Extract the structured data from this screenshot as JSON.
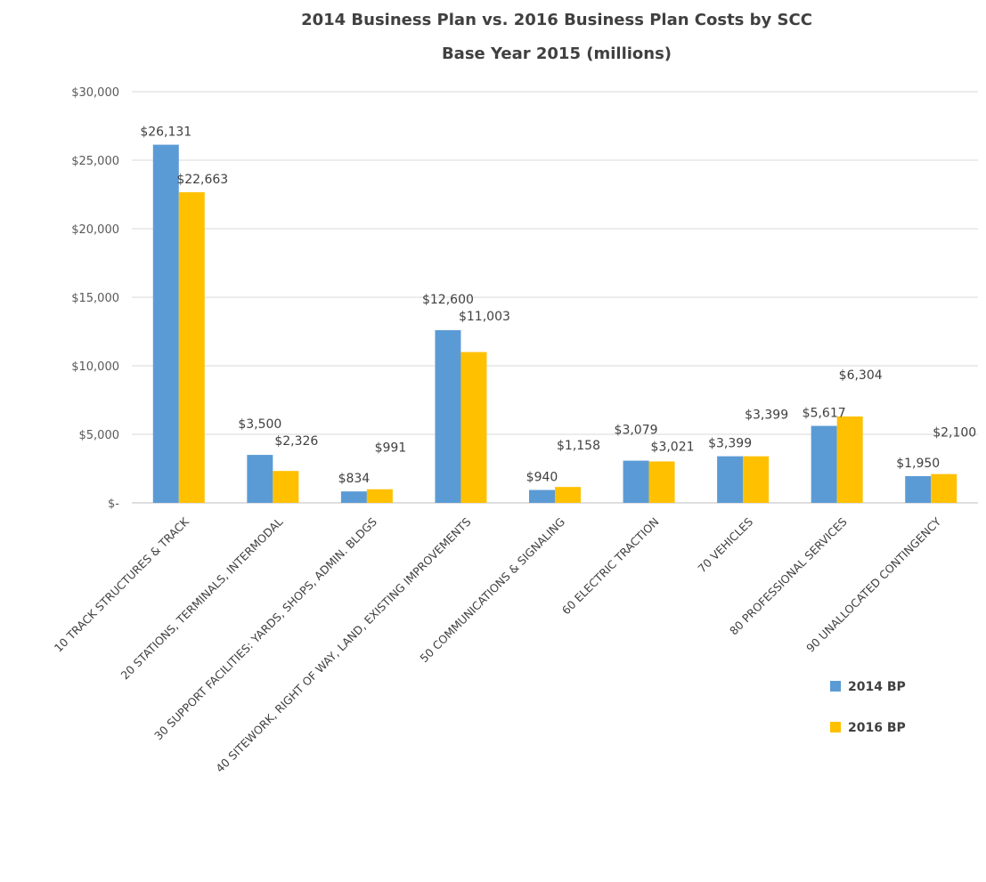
{
  "chart_data": {
    "type": "bar",
    "title": "2014 Business Plan vs. 2016 Business Plan Costs by SCC",
    "subtitle": "Base Year 2015 (millions)",
    "xlabel": "",
    "ylabel": "",
    "ylim": [
      0,
      30000
    ],
    "grid": true,
    "legend_position": "bottom-right",
    "y_ticks": [
      {
        "value": 0,
        "label": "$-"
      },
      {
        "value": 5000,
        "label": "$5,000"
      },
      {
        "value": 10000,
        "label": "$10,000"
      },
      {
        "value": 15000,
        "label": "$15,000"
      },
      {
        "value": 20000,
        "label": "$20,000"
      },
      {
        "value": 25000,
        "label": "$25,000"
      },
      {
        "value": 30000,
        "label": "$30,000"
      }
    ],
    "categories": [
      "10 TRACK STRUCTURES & TRACK",
      "20 STATIONS, TERMINALS, INTERMODAL",
      "30 SUPPORT FACILITIES: YARDS, SHOPS, ADMIN. BLDGS",
      "40 SITEWORK, RIGHT OF WAY, LAND, EXISTING IMPROVEMENTS",
      "50  COMMUNICATIONS & SIGNALING",
      "60 ELECTRIC TRACTION",
      "70 VEHICLES",
      "80 PROFESSIONAL SERVICES",
      "90 UNALLOCATED CONTINGENCY"
    ],
    "series": [
      {
        "name": "2014 BP",
        "color": "#5b9bd5",
        "values": [
          26131,
          3500,
          834,
          12600,
          940,
          3079,
          3399,
          5617,
          1950
        ],
        "labels": [
          "$26,131",
          "$3,500",
          "$834",
          "$12,600",
          "$940",
          "$3,079",
          "$3,399",
          "$5,617",
          "$1,950"
        ]
      },
      {
        "name": "2016 BP",
        "color": "#ffc000",
        "values": [
          22663,
          2326,
          991,
          11003,
          1158,
          3021,
          3399,
          6304,
          2100
        ],
        "labels": [
          "$22,663",
          "$2,326",
          "$991",
          "$11,003",
          "$1,158",
          "$3,021",
          "$3,399",
          "$6,304",
          "$2,100"
        ]
      }
    ]
  }
}
